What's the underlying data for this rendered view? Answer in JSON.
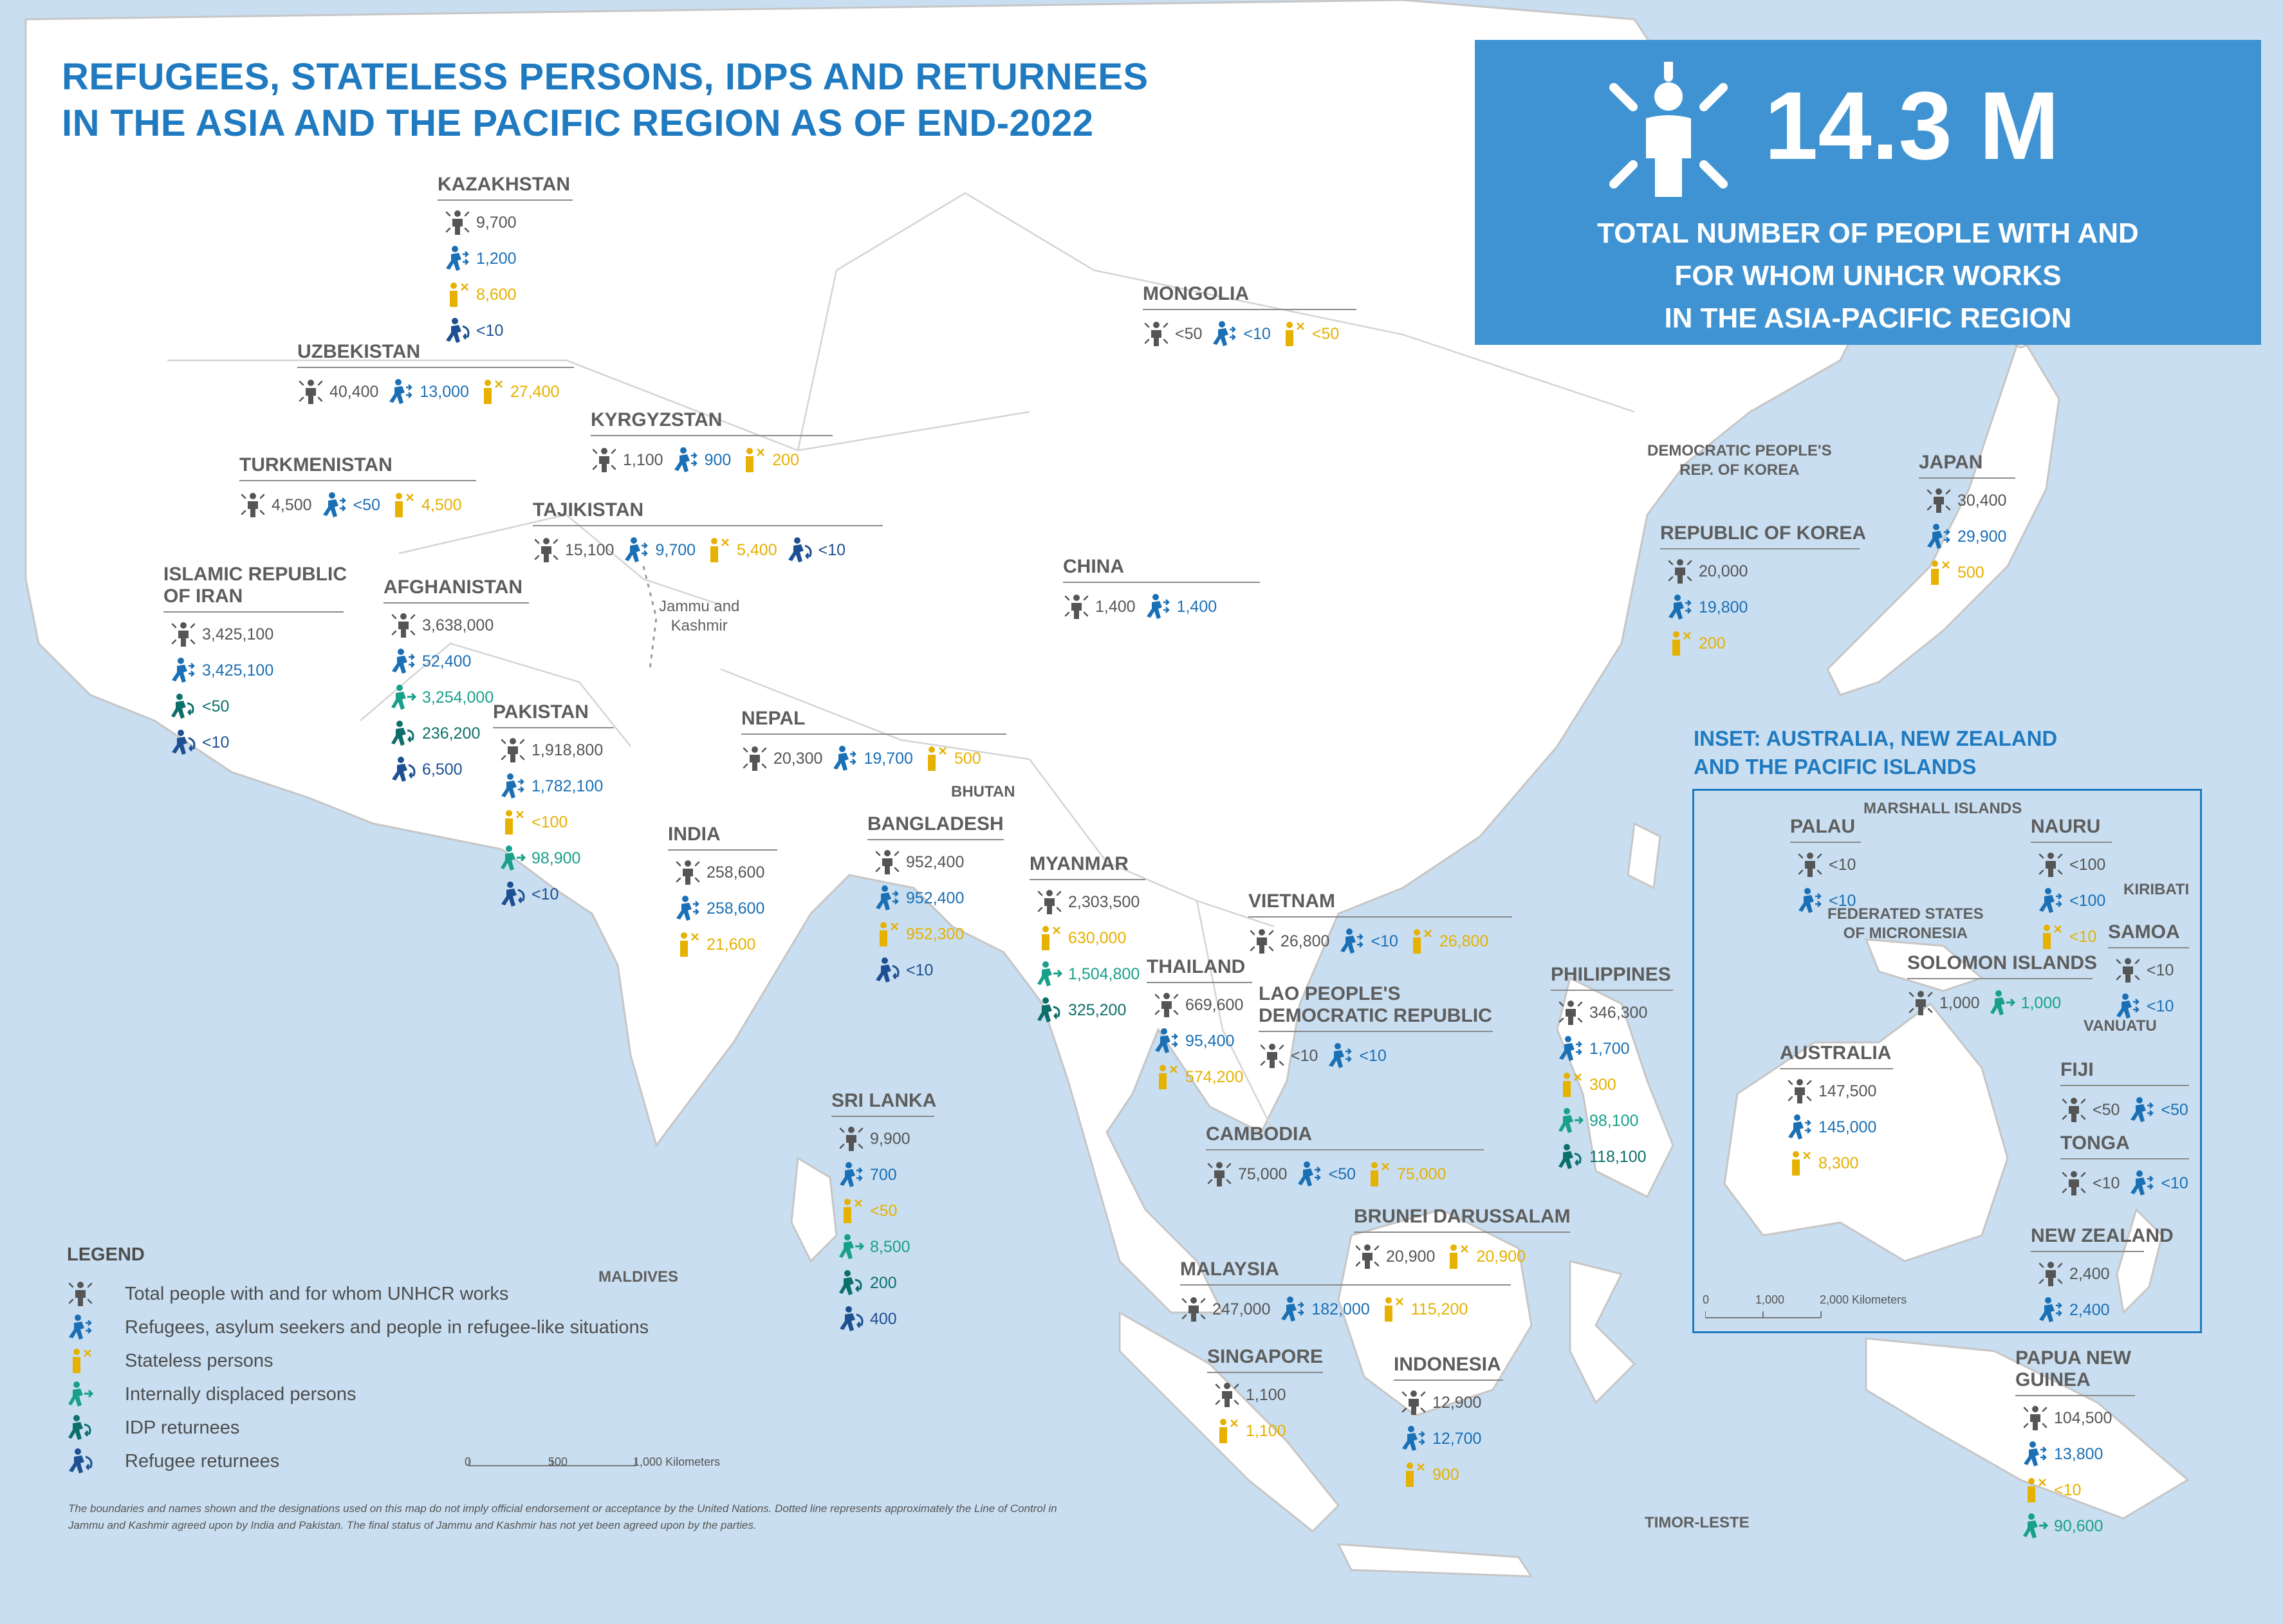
{
  "title": {
    "line1": "REFUGEES, STATELESS PERSONS, IDPS AND RETURNEES",
    "line2": "IN THE ASIA AND THE PACIFIC REGION AS OF END-2022"
  },
  "banner": {
    "value": "14.3 M",
    "line1": "TOTAL NUMBER OF PEOPLE WITH AND",
    "line2": "FOR WHOM UNHCR WORKS",
    "line3": "IN THE ASIA-PACIFIC REGION",
    "icon": "person-radiating-icon"
  },
  "colors": {
    "total": "#555555",
    "refugee": "#1a6fb5",
    "stateless": "#e6b100",
    "idp": "#18a08b",
    "idp_returnee": "#0d6f6a",
    "refugee_returnee": "#1d4f92",
    "title": "#1f7ac0",
    "banner": "#3f93d2",
    "sea": "#c9def0",
    "land": "#ffffff"
  },
  "legend": {
    "title": "LEGEND",
    "items": [
      {
        "type": "total",
        "label": "Total people with and for whom UNHCR works"
      },
      {
        "type": "refugee",
        "label": "Refugees, asylum seekers and people in refugee-like situations"
      },
      {
        "type": "stateless",
        "label": "Stateless persons"
      },
      {
        "type": "idp",
        "label": "Internally displaced persons"
      },
      {
        "type": "idpret",
        "label": "IDP returnees"
      },
      {
        "type": "refret",
        "label": "Refugee returnees"
      }
    ]
  },
  "countries": {
    "kazakhstan": {
      "name": "KAZAKHSTAN",
      "stats": [
        {
          "type": "total",
          "value": "9,700"
        },
        {
          "type": "refugee",
          "value": "1,200"
        },
        {
          "type": "stateless",
          "value": "8,600"
        },
        {
          "type": "refret",
          "value": "<10"
        }
      ]
    },
    "uzbekistan": {
      "name": "UZBEKISTAN",
      "stats": [
        {
          "type": "total",
          "value": "40,400"
        },
        {
          "type": "refugee",
          "value": "13,000"
        },
        {
          "type": "stateless",
          "value": "27,400"
        }
      ]
    },
    "kyrgyzstan": {
      "name": "KYRGYZSTAN",
      "stats": [
        {
          "type": "total",
          "value": "1,100"
        },
        {
          "type": "refugee",
          "value": "900"
        },
        {
          "type": "stateless",
          "value": "200"
        }
      ]
    },
    "turkmenistan": {
      "name": "TURKMENISTAN",
      "stats": [
        {
          "type": "total",
          "value": "4,500"
        },
        {
          "type": "refugee",
          "value": "<50"
        },
        {
          "type": "stateless",
          "value": "4,500"
        }
      ]
    },
    "tajikistan": {
      "name": "TAJIKISTAN",
      "stats": [
        {
          "type": "total",
          "value": "15,100"
        },
        {
          "type": "refugee",
          "value": "9,700"
        },
        {
          "type": "stateless",
          "value": "5,400"
        },
        {
          "type": "refret",
          "value": "<10"
        }
      ]
    },
    "iran": {
      "name1": "ISLAMIC REPUBLIC",
      "name2": "OF IRAN",
      "stats": [
        {
          "type": "total",
          "value": "3,425,100"
        },
        {
          "type": "refugee",
          "value": "3,425,100"
        },
        {
          "type": "idpret",
          "value": "<50"
        },
        {
          "type": "refret",
          "value": "<10"
        }
      ]
    },
    "afghanistan": {
      "name": "AFGHANISTAN",
      "stats": [
        {
          "type": "total",
          "value": "3,638,000"
        },
        {
          "type": "refugee",
          "value": "52,400"
        },
        {
          "type": "idp",
          "value": "3,254,000"
        },
        {
          "type": "idpret",
          "value": "236,200"
        },
        {
          "type": "refret",
          "value": "6,500"
        }
      ]
    },
    "pakistan": {
      "name": "PAKISTAN",
      "stats": [
        {
          "type": "total",
          "value": "1,918,800"
        },
        {
          "type": "refugee",
          "value": "1,782,100"
        },
        {
          "type": "stateless",
          "value": "<100"
        },
        {
          "type": "idp",
          "value": "98,900"
        },
        {
          "type": "refret",
          "value": "<10"
        }
      ]
    },
    "india": {
      "name": "INDIA",
      "stats": [
        {
          "type": "total",
          "value": "258,600"
        },
        {
          "type": "refugee",
          "value": "258,600"
        },
        {
          "type": "stateless",
          "value": "21,600"
        }
      ]
    },
    "nepal": {
      "name": "NEPAL",
      "stats": [
        {
          "type": "total",
          "value": "20,300"
        },
        {
          "type": "refugee",
          "value": "19,700"
        },
        {
          "type": "stateless",
          "value": "500"
        }
      ]
    },
    "bangladesh": {
      "name": "BANGLADESH",
      "stats": [
        {
          "type": "total",
          "value": "952,400"
        },
        {
          "type": "refugee",
          "value": "952,400"
        },
        {
          "type": "stateless",
          "value": "952,300"
        },
        {
          "type": "refret",
          "value": "<10"
        }
      ]
    },
    "myanmar": {
      "name": "MYANMAR",
      "stats": [
        {
          "type": "total",
          "value": "2,303,500"
        },
        {
          "type": "stateless",
          "value": "630,000"
        },
        {
          "type": "idp",
          "value": "1,504,800"
        },
        {
          "type": "idpret",
          "value": "325,200"
        }
      ]
    },
    "sri_lanka": {
      "name": "SRI LANKA",
      "stats": [
        {
          "type": "total",
          "value": "9,900"
        },
        {
          "type": "refugee",
          "value": "700"
        },
        {
          "type": "stateless",
          "value": "<50"
        },
        {
          "type": "idp",
          "value": "8,500"
        },
        {
          "type": "idpret",
          "value": "200"
        },
        {
          "type": "refret",
          "value": "400"
        }
      ]
    },
    "mongolia": {
      "name": "MONGOLIA",
      "stats": [
        {
          "type": "total",
          "value": "<50"
        },
        {
          "type": "refugee",
          "value": "<10"
        },
        {
          "type": "stateless",
          "value": "<50"
        }
      ]
    },
    "china": {
      "name": "CHINA",
      "stats": [
        {
          "type": "total",
          "value": "1,400"
        },
        {
          "type": "refugee",
          "value": "1,400"
        }
      ]
    },
    "korea": {
      "name": "REPUBLIC OF KOREA",
      "stats": [
        {
          "type": "total",
          "value": "20,000"
        },
        {
          "type": "refugee",
          "value": "19,800"
        },
        {
          "type": "stateless",
          "value": "200"
        }
      ]
    },
    "japan": {
      "name": "JAPAN",
      "stats": [
        {
          "type": "total",
          "value": "30,400"
        },
        {
          "type": "refugee",
          "value": "29,900"
        },
        {
          "type": "stateless",
          "value": "500"
        }
      ]
    },
    "vietnam": {
      "name": "VIETNAM",
      "stats": [
        {
          "type": "total",
          "value": "26,800"
        },
        {
          "type": "refugee",
          "value": "<10"
        },
        {
          "type": "stateless",
          "value": "26,800"
        }
      ]
    },
    "thailand": {
      "name": "THAILAND",
      "stats": [
        {
          "type": "total",
          "value": "669,600"
        },
        {
          "type": "refugee",
          "value": "95,400"
        },
        {
          "type": "stateless",
          "value": "574,200"
        }
      ]
    },
    "lao": {
      "name1": "LAO PEOPLE'S",
      "name2": "DEMOCRATIC REPUBLIC",
      "stats": [
        {
          "type": "total",
          "value": "<10"
        },
        {
          "type": "refugee",
          "value": "<10"
        }
      ]
    },
    "philippines": {
      "name": "PHILIPPINES",
      "stats": [
        {
          "type": "total",
          "value": "346,300"
        },
        {
          "type": "refugee",
          "value": "1,700"
        },
        {
          "type": "stateless",
          "value": "300"
        },
        {
          "type": "idp",
          "value": "98,100"
        },
        {
          "type": "idpret",
          "value": "118,100"
        }
      ]
    },
    "cambodia": {
      "name": "CAMBODIA",
      "stats": [
        {
          "type": "total",
          "value": "75,000"
        },
        {
          "type": "refugee",
          "value": "<50"
        },
        {
          "type": "stateless",
          "value": "75,000"
        }
      ]
    },
    "brunei": {
      "name": "BRUNEI DARUSSALAM",
      "stats": [
        {
          "type": "total",
          "value": "20,900"
        },
        {
          "type": "stateless",
          "value": "20,900"
        }
      ]
    },
    "malaysia": {
      "name": "MALAYSIA",
      "stats": [
        {
          "type": "total",
          "value": "247,000"
        },
        {
          "type": "refugee",
          "value": "182,000"
        },
        {
          "type": "stateless",
          "value": "115,200"
        }
      ]
    },
    "singapore": {
      "name": "SINGAPORE",
      "stats": [
        {
          "type": "total",
          "value": "1,100"
        },
        {
          "type": "stateless",
          "value": "1,100"
        }
      ]
    },
    "indonesia": {
      "name": "INDONESIA",
      "stats": [
        {
          "type": "total",
          "value": "12,900"
        },
        {
          "type": "refugee",
          "value": "12,700"
        },
        {
          "type": "stateless",
          "value": "900"
        }
      ]
    },
    "png": {
      "name1": "PAPUA NEW",
      "name2": "GUINEA",
      "stats": [
        {
          "type": "total",
          "value": "104,500"
        },
        {
          "type": "refugee",
          "value": "13,800"
        },
        {
          "type": "stateless",
          "value": "<10"
        },
        {
          "type": "idp",
          "value": "90,600"
        }
      ]
    },
    "palau": {
      "name": "PALAU",
      "stats": [
        {
          "type": "total",
          "value": "<10"
        },
        {
          "type": "refugee",
          "value": "<10"
        }
      ]
    },
    "nauru": {
      "name": "NAURU",
      "stats": [
        {
          "type": "total",
          "value": "<100"
        },
        {
          "type": "refugee",
          "value": "<100"
        },
        {
          "type": "stateless",
          "value": "<10"
        }
      ]
    },
    "samoa": {
      "name": "SAMOA",
      "stats": [
        {
          "type": "total",
          "value": "<10"
        },
        {
          "type": "refugee",
          "value": "<10"
        }
      ]
    },
    "solomon": {
      "name": "SOLOMON ISLANDS",
      "stats": [
        {
          "type": "total",
          "value": "1,000"
        },
        {
          "type": "idp",
          "value": "1,000"
        }
      ]
    },
    "australia": {
      "name": "AUSTRALIA",
      "stats": [
        {
          "type": "total",
          "value": "147,500"
        },
        {
          "type": "refugee",
          "value": "145,000"
        },
        {
          "type": "stateless",
          "value": "8,300"
        }
      ]
    },
    "fiji": {
      "name": "FIJI",
      "stats": [
        {
          "type": "total",
          "value": "<50"
        },
        {
          "type": "refugee",
          "value": "<50"
        }
      ]
    },
    "tonga": {
      "name": "TONGA",
      "stats": [
        {
          "type": "total",
          "value": "<10"
        },
        {
          "type": "refugee",
          "value": "<10"
        }
      ]
    },
    "new_zealand": {
      "name": "NEW ZEALAND",
      "stats": [
        {
          "type": "total",
          "value": "2,400"
        },
        {
          "type": "refugee",
          "value": "2,400"
        }
      ]
    }
  },
  "place_labels": {
    "dprk1": "DEMOCRATIC PEOPLE'S",
    "dprk2": "REP. OF KOREA",
    "jk1": "Jammu and",
    "jk2": "Kashmir",
    "bhutan": "BHUTAN",
    "maldives": "MALDIVES",
    "timor": "TIMOR-LESTE",
    "marshall": "MARSHALL ISLANDS",
    "kiribati": "KIRIBATI",
    "fsm1": "FEDERATED STATES",
    "fsm2": "OF MICRONESIA",
    "vanuatu": "VANUATU"
  },
  "inset": {
    "title1": "INSET: AUSTRALIA, NEW ZEALAND",
    "title2": "AND THE PACIFIC ISLANDS",
    "scale": {
      "t0": "0",
      "t1": "1,000",
      "t2": "2,000 Kilometers"
    }
  },
  "scale": {
    "t0": "0",
    "t1": "500",
    "t2": "1,000",
    "unit": "Kilometers"
  },
  "disclaimer": "The boundaries and names shown and the designations used on this map do not imply official endorsement or acceptance by the United Nations. Dotted line represents approximately the Line of Control in Jammu and Kashmir agreed upon by India and Pakistan. The final status of Jammu and Kashmir has not yet been agreed upon by the parties."
}
